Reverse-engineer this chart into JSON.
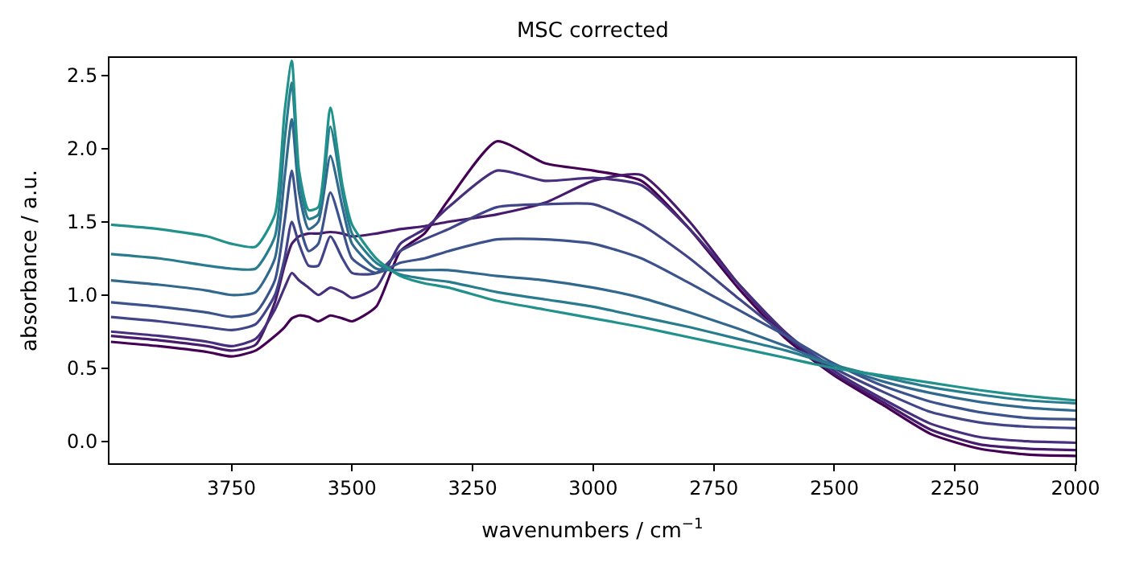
{
  "chart_data": {
    "type": "line",
    "title": "MSC corrected",
    "xlabel": "wavenumbers / cm$^{−1}$",
    "ylabel": "absorbance / a.u.",
    "x": [
      4000,
      3900,
      3800,
      3750,
      3700,
      3660,
      3640,
      3625,
      3610,
      3590,
      3570,
      3545,
      3520,
      3500,
      3450,
      3400,
      3350,
      3300,
      3200,
      3100,
      3000,
      2900,
      2800,
      2700,
      2600,
      2500,
      2400,
      2300,
      2200,
      2100,
      2000
    ],
    "series": [
      {
        "color": "#440154",
        "values": [
          0.68,
          0.65,
          0.61,
          0.58,
          0.62,
          0.72,
          0.78,
          0.84,
          0.86,
          0.85,
          0.82,
          0.86,
          0.84,
          0.82,
          0.92,
          1.3,
          1.42,
          1.65,
          2.05,
          1.9,
          1.85,
          1.78,
          1.45,
          1.05,
          0.7,
          0.45,
          0.25,
          0.05,
          -0.05,
          -0.09,
          -0.1
        ]
      },
      {
        "color": "#481a6c",
        "values": [
          0.72,
          0.69,
          0.65,
          0.62,
          0.66,
          0.95,
          1.2,
          1.35,
          1.4,
          1.42,
          1.42,
          1.43,
          1.42,
          1.4,
          1.42,
          1.45,
          1.47,
          1.5,
          1.55,
          1.63,
          1.78,
          1.82,
          1.5,
          1.08,
          0.72,
          0.46,
          0.27,
          0.08,
          -0.02,
          -0.05,
          -0.06
        ]
      },
      {
        "color": "#472f7d",
        "values": [
          0.75,
          0.72,
          0.68,
          0.65,
          0.7,
          0.9,
          1.05,
          1.15,
          1.1,
          1.05,
          1.0,
          1.05,
          1.02,
          0.98,
          1.05,
          1.35,
          1.45,
          1.6,
          1.85,
          1.78,
          1.8,
          1.75,
          1.45,
          1.08,
          0.74,
          0.48,
          0.29,
          0.12,
          0.03,
          0.0,
          -0.01
        ]
      },
      {
        "color": "#414487",
        "values": [
          0.85,
          0.82,
          0.78,
          0.76,
          0.8,
          1.0,
          1.25,
          1.5,
          1.35,
          1.2,
          1.2,
          1.4,
          1.25,
          1.15,
          1.15,
          1.3,
          1.38,
          1.45,
          1.6,
          1.62,
          1.62,
          1.48,
          1.25,
          0.98,
          0.72,
          0.5,
          0.34,
          0.2,
          0.13,
          0.1,
          0.09
        ]
      },
      {
        "color": "#3b528b",
        "values": [
          0.95,
          0.92,
          0.88,
          0.85,
          0.88,
          1.1,
          1.5,
          1.85,
          1.5,
          1.3,
          1.35,
          1.7,
          1.45,
          1.25,
          1.15,
          1.22,
          1.25,
          1.3,
          1.38,
          1.38,
          1.35,
          1.25,
          1.08,
          0.9,
          0.72,
          0.53,
          0.38,
          0.27,
          0.2,
          0.16,
          0.15
        ]
      },
      {
        "color": "#31688e",
        "values": [
          1.1,
          1.07,
          1.03,
          1.0,
          1.02,
          1.25,
          1.8,
          2.2,
          1.7,
          1.45,
          1.5,
          1.95,
          1.6,
          1.35,
          1.18,
          1.17,
          1.17,
          1.17,
          1.13,
          1.1,
          1.05,
          0.98,
          0.88,
          0.77,
          0.65,
          0.52,
          0.41,
          0.33,
          0.27,
          0.23,
          0.21
        ]
      },
      {
        "color": "#287c8e",
        "values": [
          1.28,
          1.25,
          1.2,
          1.18,
          1.18,
          1.4,
          2.05,
          2.45,
          1.8,
          1.52,
          1.55,
          2.15,
          1.7,
          1.42,
          1.22,
          1.14,
          1.11,
          1.09,
          1.02,
          0.97,
          0.92,
          0.85,
          0.78,
          0.7,
          0.62,
          0.52,
          0.44,
          0.37,
          0.32,
          0.28,
          0.26
        ]
      },
      {
        "color": "#21918c",
        "values": [
          1.48,
          1.45,
          1.4,
          1.35,
          1.33,
          1.55,
          2.25,
          2.6,
          1.85,
          1.58,
          1.6,
          2.28,
          1.75,
          1.48,
          1.25,
          1.13,
          1.08,
          1.05,
          0.96,
          0.9,
          0.84,
          0.78,
          0.71,
          0.64,
          0.57,
          0.5,
          0.45,
          0.4,
          0.35,
          0.31,
          0.28
        ]
      }
    ],
    "xlim": [
      4003,
      2000
    ],
    "xticks": [
      3750,
      3500,
      3250,
      3000,
      2750,
      2500,
      2250,
      2000
    ],
    "ylim": [
      -0.15,
      2.62
    ],
    "yticks": [
      {
        "value": 0,
        "label": "0.0"
      },
      {
        "value": 0.5,
        "label": "0.5"
      },
      {
        "value": 1,
        "label": "1.0"
      },
      {
        "value": 1.5,
        "label": "1.5"
      },
      {
        "value": 2,
        "label": "2.0"
      },
      {
        "value": 2.5,
        "label": "2.5"
      }
    ],
    "marker": "none",
    "line_style": "solid"
  }
}
